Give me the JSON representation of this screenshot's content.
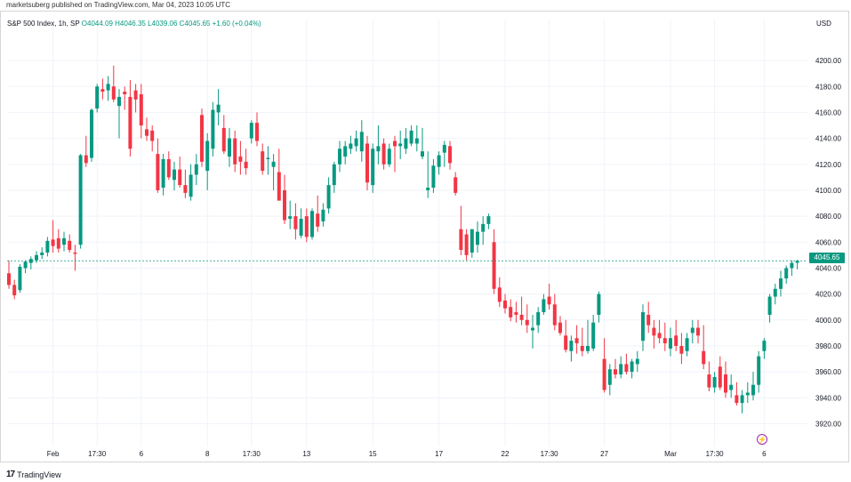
{
  "header": {
    "publisher_line": "marketsuberg published on TradingView.com, Mar 04, 2023 10:05 UTC"
  },
  "legend": {
    "symbol": "S&P 500 Index, 1h, SP",
    "ohlc": "O4044.09 H4046.35 L4039.06 C4045.65 +1.60 (+0.04%)"
  },
  "axis": {
    "currency": "USD",
    "price_tag": "4045.65"
  },
  "footer": {
    "brand": "TradingView",
    "logo_mark": "17",
    "bolt_glyph": "⚡"
  },
  "colors": {
    "up": "#089981",
    "down": "#f23645",
    "grid": "#f0f3fa",
    "last_price_line": "#089981"
  },
  "chart_data": {
    "type": "candlestick",
    "title": "S&P 500 Index, 1h, SP",
    "ylabel": "USD",
    "ylim": [
      3908,
      4222
    ],
    "y_ticks": [
      3920,
      3940,
      3960,
      3980,
      4000,
      4020,
      4040,
      4060,
      4080,
      4100,
      4120,
      4140,
      4160,
      4180,
      4200
    ],
    "y_tick_labels": [
      "3920.00",
      "3940.00",
      "3960.00",
      "3980.00",
      "4000.00",
      "4020.00",
      "4040.00",
      "4060.00",
      "4080.00",
      "4100.00",
      "4120.00",
      "4140.00",
      "4160.00",
      "4180.00",
      "4200.00"
    ],
    "x_ticks": [
      {
        "label": "Feb",
        "index": 8
      },
      {
        "label": "17:30",
        "index": 16
      },
      {
        "label": "6",
        "index": 24
      },
      {
        "label": "8",
        "index": 36
      },
      {
        "label": "17:30",
        "index": 44
      },
      {
        "label": "13",
        "index": 54
      },
      {
        "label": "15",
        "index": 66
      },
      {
        "label": "17",
        "index": 78
      },
      {
        "label": "22",
        "index": 90
      },
      {
        "label": "17:30",
        "index": 98
      },
      {
        "label": "27",
        "index": 108
      },
      {
        "label": "Mar",
        "index": 120
      },
      {
        "label": "17:30",
        "index": 128
      },
      {
        "label": "6",
        "index": 137
      }
    ],
    "last_price": 4045.65,
    "candles": [
      [
        4036,
        4046,
        4024,
        4027
      ],
      [
        4027,
        4031,
        4016,
        4019
      ],
      [
        4023,
        4043,
        4021,
        4041
      ],
      [
        4040,
        4046,
        4036,
        4045
      ],
      [
        4044,
        4049,
        4039,
        4047
      ],
      [
        4046,
        4053,
        4044,
        4050
      ],
      [
        4050,
        4056,
        4047,
        4052
      ],
      [
        4052,
        4064,
        4049,
        4061
      ],
      [
        4062,
        4077,
        4052,
        4057
      ],
      [
        4063,
        4070,
        4052,
        4055
      ],
      [
        4058,
        4068,
        4053,
        4063
      ],
      [
        4061,
        4066,
        4052,
        4054
      ],
      [
        4052,
        4058,
        4038,
        4051
      ],
      [
        4058,
        4128,
        4055,
        4127
      ],
      [
        4127,
        4142,
        4118,
        4121
      ],
      [
        4125,
        4163,
        4122,
        4162
      ],
      [
        4163,
        4182,
        4160,
        4180
      ],
      [
        4178,
        4186,
        4170,
        4176
      ],
      [
        4177,
        4188,
        4169,
        4182
      ],
      [
        4180,
        4196,
        4168,
        4170
      ],
      [
        4165,
        4178,
        4140,
        4172
      ],
      [
        4176,
        4180,
        4162,
        4174
      ],
      [
        4172,
        4185,
        4126,
        4132
      ],
      [
        4177,
        4182,
        4160,
        4170
      ],
      [
        4174,
        4182,
        4140,
        4150
      ],
      [
        4147,
        4156,
        4138,
        4142
      ],
      [
        4146,
        4150,
        4130,
        4138
      ],
      [
        4128,
        4140,
        4098,
        4100
      ],
      [
        4102,
        4128,
        4096,
        4124
      ],
      [
        4124,
        4130,
        4108,
        4110
      ],
      [
        4108,
        4122,
        4100,
        4116
      ],
      [
        4116,
        4126,
        4102,
        4104
      ],
      [
        4104,
        4116,
        4094,
        4098
      ],
      [
        4095,
        4120,
        4092,
        4112
      ],
      [
        4112,
        4128,
        4104,
        4120
      ],
      [
        4158,
        4163,
        4118,
        4122
      ],
      [
        4115,
        4144,
        4100,
        4138
      ],
      [
        4132,
        4168,
        4126,
        4162
      ],
      [
        4160,
        4178,
        4150,
        4166
      ],
      [
        4148,
        4158,
        4128,
        4130
      ],
      [
        4126,
        4148,
        4118,
        4140
      ],
      [
        4140,
        4146,
        4114,
        4120
      ],
      [
        4126,
        4138,
        4112,
        4122
      ],
      [
        4122,
        4132,
        4112,
        4117
      ],
      [
        4140,
        4154,
        4136,
        4152
      ],
      [
        4152,
        4160,
        4134,
        4138
      ],
      [
        4130,
        4136,
        4112,
        4115
      ],
      [
        4124,
        4134,
        4112,
        4125
      ],
      [
        4118,
        4128,
        4100,
        4122
      ],
      [
        4114,
        4132,
        4092,
        4092
      ],
      [
        4100,
        4112,
        4074,
        4077
      ],
      [
        4078,
        4092,
        4070,
        4080
      ],
      [
        4080,
        4090,
        4062,
        4070
      ],
      [
        4065,
        4086,
        4063,
        4078
      ],
      [
        4080,
        4086,
        4060,
        4064
      ],
      [
        4064,
        4086,
        4062,
        4084
      ],
      [
        4082,
        4096,
        4068,
        4072
      ],
      [
        4076,
        4090,
        4072,
        4085
      ],
      [
        4086,
        4110,
        4082,
        4104
      ],
      [
        4104,
        4122,
        4098,
        4120
      ],
      [
        4120,
        4138,
        4114,
        4132
      ],
      [
        4126,
        4138,
        4120,
        4134
      ],
      [
        4132,
        4142,
        4128,
        4136
      ],
      [
        4134,
        4146,
        4130,
        4140
      ],
      [
        4130,
        4154,
        4122,
        4145
      ],
      [
        4136,
        4142,
        4100,
        4106
      ],
      [
        4104,
        4136,
        4098,
        4132
      ],
      [
        4130,
        4150,
        4120,
        4134
      ],
      [
        4136,
        4140,
        4116,
        4120
      ],
      [
        4120,
        4136,
        4118,
        4132
      ],
      [
        4138,
        4142,
        4114,
        4134
      ],
      [
        4134,
        4146,
        4124,
        4136
      ],
      [
        4132,
        4148,
        4128,
        4140
      ],
      [
        4136,
        4150,
        4134,
        4146
      ],
      [
        4136,
        4150,
        4130,
        4140
      ],
      [
        4126,
        4148,
        4124,
        4130
      ],
      [
        4100,
        4130,
        4094,
        4102
      ],
      [
        4102,
        4124,
        4098,
        4119
      ],
      [
        4118,
        4130,
        4112,
        4127
      ],
      [
        4129,
        4138,
        4118,
        4135
      ],
      [
        4134,
        4138,
        4116,
        4121
      ],
      [
        4110,
        4114,
        4096,
        4098
      ],
      [
        4070,
        4088,
        4050,
        4054
      ],
      [
        4066,
        4070,
        4046,
        4050
      ],
      [
        4052,
        4070,
        4048,
        4070
      ],
      [
        4058,
        4076,
        4052,
        4068
      ],
      [
        4068,
        4080,
        4058,
        4074
      ],
      [
        4074,
        4082,
        4070,
        4080
      ],
      [
        4060,
        4070,
        4020,
        4024
      ],
      [
        4025,
        4033,
        4010,
        4014
      ],
      [
        4015,
        4020,
        4005,
        4009
      ],
      [
        4010,
        4016,
        3999,
        4002
      ],
      [
        4006,
        4014,
        3998,
        4004
      ],
      [
        4004,
        4018,
        3996,
        4000
      ],
      [
        4000,
        4012,
        3990,
        3996
      ],
      [
        3992,
        4004,
        3978,
        3994
      ],
      [
        3996,
        4010,
        3990,
        4006
      ],
      [
        4006,
        4020,
        4004,
        4016
      ],
      [
        4018,
        4028,
        4008,
        4012
      ],
      [
        4012,
        4020,
        3992,
        3996
      ],
      [
        3998,
        4003,
        3988,
        3990
      ],
      [
        3988,
        4000,
        3975,
        3977
      ],
      [
        3976,
        3988,
        3968,
        3984
      ],
      [
        3986,
        3996,
        3974,
        3982
      ],
      [
        3980,
        3994,
        3972,
        3976
      ],
      [
        3976,
        4000,
        3974,
        3980
      ],
      [
        3978,
        4004,
        3976,
        3998
      ],
      [
        4004,
        4022,
        3998,
        4020
      ],
      [
        3970,
        3986,
        3944,
        3946
      ],
      [
        3950,
        3966,
        3942,
        3962
      ],
      [
        3962,
        3970,
        3955,
        3958
      ],
      [
        3958,
        3972,
        3955,
        3966
      ],
      [
        3966,
        3974,
        3958,
        3960
      ],
      [
        3960,
        3970,
        3955,
        3968
      ],
      [
        3966,
        3976,
        3960,
        3970
      ],
      [
        3984,
        4012,
        3976,
        4006
      ],
      [
        4004,
        4014,
        3990,
        3996
      ],
      [
        3994,
        4000,
        3978,
        3988
      ],
      [
        3990,
        4000,
        3982,
        3986
      ],
      [
        3986,
        3998,
        3976,
        3982
      ],
      [
        3978,
        3994,
        3972,
        3986
      ],
      [
        3988,
        4000,
        3976,
        3980
      ],
      [
        3980,
        3990,
        3966,
        3974
      ],
      [
        3976,
        3990,
        3972,
        3986
      ],
      [
        3990,
        4000,
        3982,
        3994
      ],
      [
        3994,
        4000,
        3982,
        3988
      ],
      [
        3976,
        3996,
        3962,
        3966
      ],
      [
        3958,
        3968,
        3945,
        3948
      ],
      [
        3948,
        3960,
        3944,
        3956
      ],
      [
        3964,
        3972,
        3946,
        3948
      ],
      [
        3958,
        3968,
        3940,
        3944
      ],
      [
        3946,
        3958,
        3940,
        3950
      ],
      [
        3942,
        3952,
        3934,
        3936
      ],
      [
        3936,
        3946,
        3928,
        3942
      ],
      [
        3942,
        3952,
        3936,
        3944
      ],
      [
        3942,
        3960,
        3938,
        3950
      ],
      [
        3950,
        3976,
        3944,
        3972
      ],
      [
        3976,
        3986,
        3970,
        3984
      ],
      [
        4004,
        4020,
        3998,
        4018
      ],
      [
        4018,
        4028,
        4012,
        4024
      ],
      [
        4024,
        4038,
        4018,
        4032
      ],
      [
        4032,
        4042,
        4028,
        4040
      ],
      [
        4040,
        4046,
        4034,
        4044
      ],
      [
        4044.09,
        4046.35,
        4039.06,
        4045.65
      ]
    ]
  }
}
